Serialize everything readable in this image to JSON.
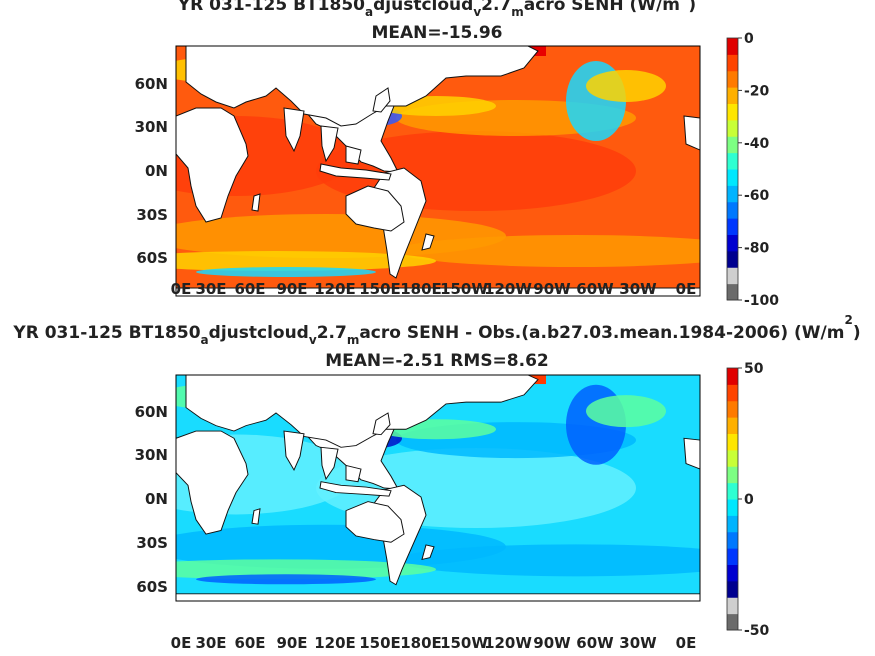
{
  "panels": [
    {
      "title_parts": [
        "YR 031-125 BT1850",
        "a",
        "djustcloud",
        "v",
        "2.7",
        "m",
        "acro  SENH (W/m",
        "2",
        ")"
      ],
      "subtitle": "MEAN=-15.96",
      "lat_labels": [
        "60N",
        "30N",
        "0N",
        "30S",
        "60S"
      ],
      "lon_labels": [
        "0E",
        "30E",
        "60E",
        "90E",
        "120E",
        "150E",
        "180E",
        "150W",
        "120W",
        "90W",
        "60W",
        "30W",
        "0E"
      ],
      "colorbar": {
        "ticks": [
          "0",
          "-20",
          "-40",
          "-60",
          "-80",
          "-100"
        ],
        "range": [
          -100,
          0
        ],
        "colors": [
          "#6b6b6b",
          "#cfcfcf",
          "#00008f",
          "#0000d0",
          "#0038ff",
          "#0078ff",
          "#00b4ff",
          "#00e8ff",
          "#2effd2",
          "#7dff83",
          "#c8ff37",
          "#ffe600",
          "#ffb000",
          "#ff7a00",
          "#ff4400",
          "#e00000"
        ]
      },
      "field_colors": {
        "ocean": "#ff5a0e",
        "warm": "#ff3d0a",
        "cool": "#ff9a00",
        "mid": "#ffd200",
        "cold": "#19d9ff",
        "colder": "#2f5bff",
        "ice": "#e80000"
      }
    },
    {
      "title_parts": [
        "YR 031-125 BT1850",
        "a",
        "djustcloud",
        "v",
        "2.7",
        "m",
        "acro SENH - Obs.(a.b27.03.mean.1984-2006) (W/m",
        "2",
        ")"
      ],
      "subtitle": "MEAN=-2.51 RMS=8.62",
      "lat_labels": [
        "60N",
        "30N",
        "0N",
        "30S",
        "60S"
      ],
      "lon_labels": [
        "0E",
        "30E",
        "60E",
        "90E",
        "120E",
        "150E",
        "180E",
        "150W",
        "120W",
        "90W",
        "60W",
        "30W",
        "0E"
      ],
      "colorbar": {
        "ticks": [
          "50",
          "0",
          "-50"
        ],
        "range": [
          -50,
          50
        ],
        "colors": [
          "#6b6b6b",
          "#cfcfcf",
          "#00008f",
          "#0000d0",
          "#0038ff",
          "#0078ff",
          "#00b4ff",
          "#00e8ff",
          "#2effd2",
          "#7dff83",
          "#c8ff37",
          "#ffe600",
          "#ffb000",
          "#ff7a00",
          "#ff4400",
          "#e00000"
        ]
      },
      "field_colors": {
        "ocean": "#19dcff",
        "warm": "#63f0ff",
        "cool": "#00b9ff",
        "mid": "#5dffa0",
        "cold": "#0060ff",
        "colder": "#0010c8",
        "ice": "#ff3a00"
      }
    }
  ]
}
